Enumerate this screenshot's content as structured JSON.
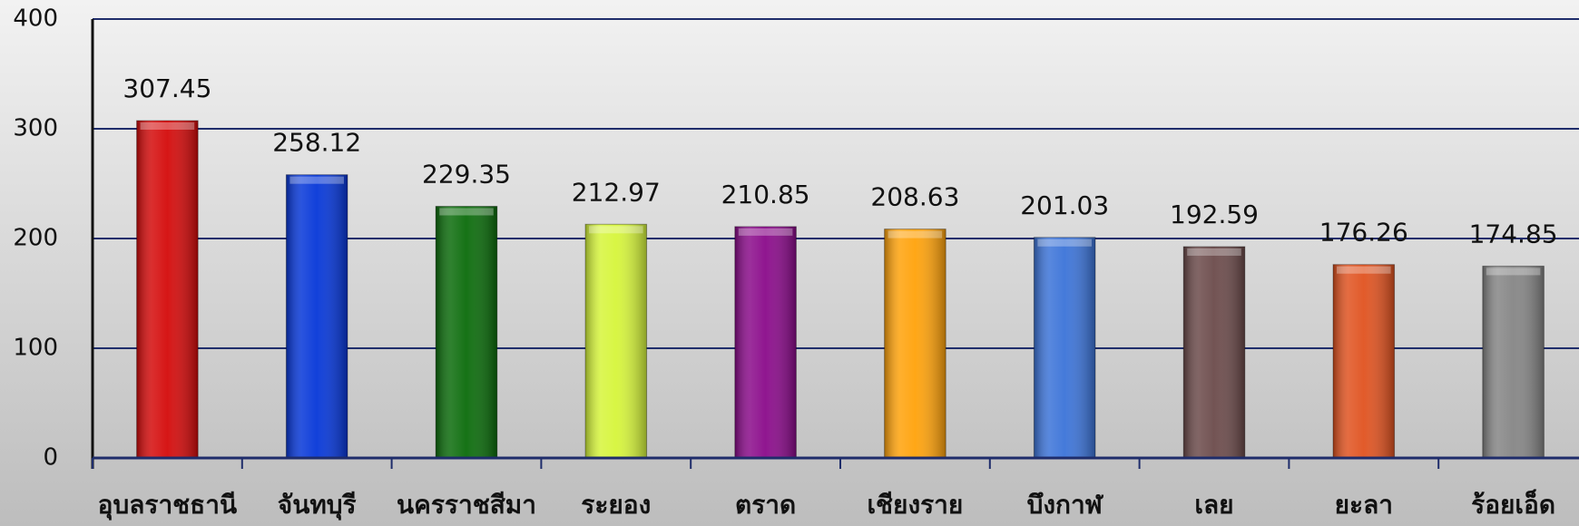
{
  "chart_data": {
    "type": "bar",
    "categories": [
      "อุบลราชธานี",
      "จันทบุรี",
      "นครราชสีมา",
      "ระยอง",
      "ตราด",
      "เชียงราย",
      "บึงกาฬ",
      "เลย",
      "ยะลา",
      "ร้อยเอ็ด"
    ],
    "values": [
      307.45,
      258.12,
      229.35,
      212.97,
      210.85,
      208.63,
      201.03,
      192.59,
      176.26,
      174.85
    ],
    "colors": [
      "#d40a0a",
      "#0536d8",
      "#0a6b0a",
      "#d6f53a",
      "#8a0a8a",
      "#ffa20a",
      "#3b73d8",
      "#6b4a4a",
      "#e0521f",
      "#858585"
    ],
    "ylim": [
      0,
      400
    ],
    "yticks": [
      0,
      100,
      200,
      300,
      400
    ],
    "grid": true
  }
}
